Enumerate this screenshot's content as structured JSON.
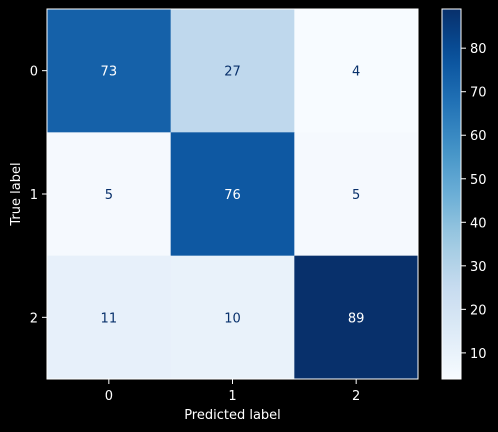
{
  "chart_data": {
    "type": "heatmap",
    "title": "",
    "xlabel": "Predicted label",
    "ylabel": "True label",
    "x_categories": [
      "0",
      "1",
      "2"
    ],
    "y_categories": [
      "0",
      "1",
      "2"
    ],
    "values": [
      [
        73,
        27,
        4
      ],
      [
        5,
        76,
        5
      ],
      [
        11,
        10,
        89
      ]
    ],
    "colormap": "Blues",
    "colorbar": {
      "range": [
        4,
        89
      ],
      "ticks": [
        10,
        20,
        30,
        40,
        50,
        60,
        70,
        80
      ]
    },
    "grid": false
  },
  "colors": {
    "background": "#000000",
    "text": "#ffffff",
    "text_on_dark": "#ffffff",
    "text_on_light": "#08306b"
  }
}
